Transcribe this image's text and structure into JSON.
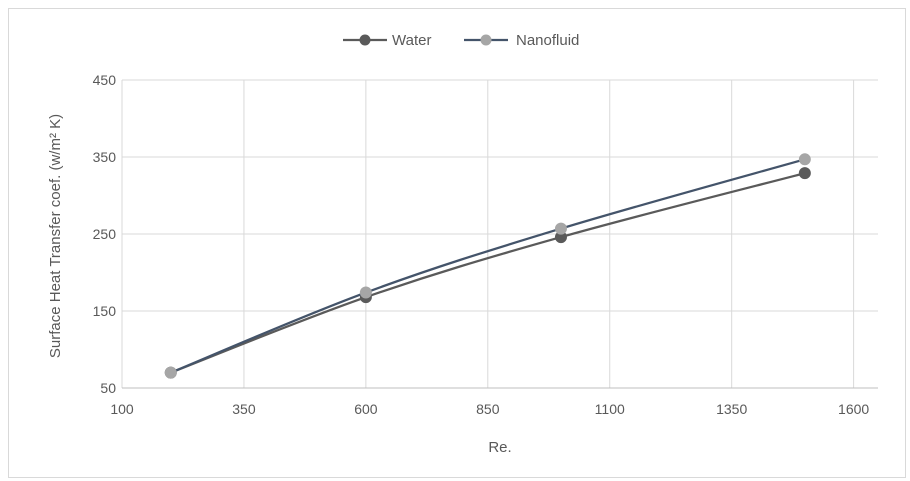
{
  "chart_data": {
    "type": "line",
    "title": "",
    "xlabel": "Re.",
    "ylabel": "Surface Heat Transfer coef. (w/m² K)",
    "xlim": [
      100,
      1650
    ],
    "ylim": [
      50,
      450
    ],
    "xticks": [
      100,
      350,
      600,
      850,
      1100,
      1350,
      1600
    ],
    "yticks": [
      50,
      150,
      250,
      350,
      450
    ],
    "grid": true,
    "legend_position": "top-center",
    "series": [
      {
        "name": "Water",
        "color": "#5a5a5a",
        "marker_color": "#5a5a5a",
        "x": [
          200,
          600,
          1000,
          1500
        ],
        "y": [
          70,
          168,
          246,
          329
        ]
      },
      {
        "name": "Nanofluid",
        "color": "#44546a",
        "marker_color": "#a6a6a6",
        "x": [
          200,
          600,
          1000,
          1500
        ],
        "y": [
          70,
          174,
          257,
          347
        ]
      }
    ]
  }
}
